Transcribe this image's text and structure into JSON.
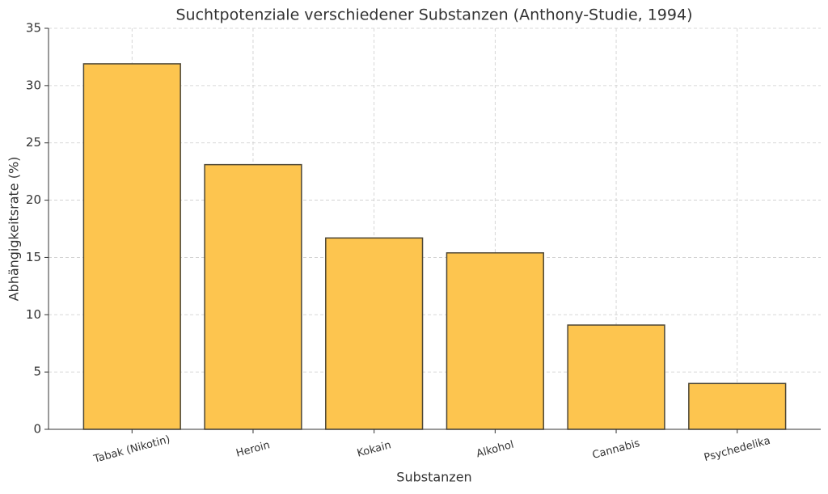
{
  "chart_data": {
    "type": "bar",
    "title": "Suchtpotenziale verschiedener Substanzen (Anthony-Studie, 1994)",
    "x_label": "Substanzen",
    "y_label": "Abhängigkeitsrate (%)",
    "categories": [
      "Tabak (Nikotin)",
      "Heroin",
      "Kokain",
      "Alkohol",
      "Cannabis",
      "Psychedelika"
    ],
    "values": [
      31.9,
      23.1,
      16.7,
      15.4,
      9.1,
      4.0
    ],
    "color": "#fdc54f",
    "ylim": [
      0,
      35
    ],
    "yticks": [
      0,
      5,
      10,
      15,
      20,
      25,
      30,
      35
    ],
    "grid": true
  }
}
